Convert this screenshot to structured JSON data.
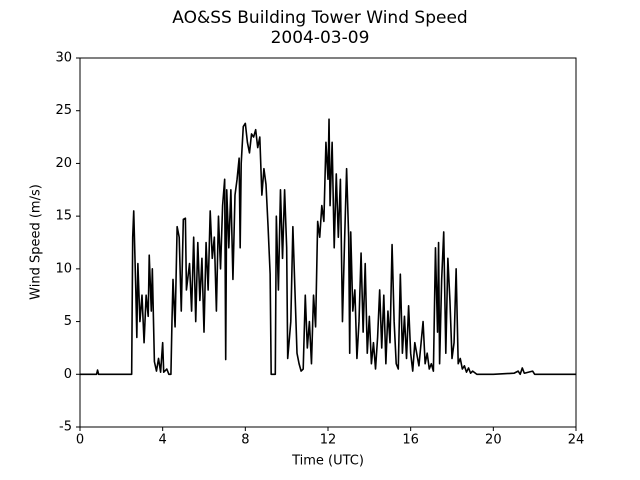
{
  "chart_data": {
    "type": "line",
    "title": "AO&SS Building Tower Wind Speed",
    "subtitle": "2004-03-09",
    "x_label": "Time (UTC)",
    "y_label": "Wind Speed (m/s)",
    "xlim": [
      0,
      24
    ],
    "xticks": [
      0,
      4,
      8,
      12,
      16,
      20,
      24
    ],
    "ylim": [
      -5,
      30
    ],
    "yticks": [
      -5,
      0,
      5,
      10,
      15,
      20,
      25,
      30
    ],
    "grid": false,
    "x": [
      0.0,
      0.8,
      0.85,
      0.9,
      2.5,
      2.55,
      2.6,
      2.7,
      2.75,
      2.8,
      2.9,
      3.0,
      3.1,
      3.2,
      3.3,
      3.35,
      3.45,
      3.5,
      3.6,
      3.7,
      3.8,
      3.9,
      4.0,
      4.05,
      4.2,
      4.3,
      4.4,
      4.45,
      4.5,
      4.6,
      4.7,
      4.8,
      4.9,
      5.0,
      5.1,
      5.15,
      5.3,
      5.4,
      5.5,
      5.6,
      5.7,
      5.8,
      5.9,
      6.0,
      6.1,
      6.2,
      6.3,
      6.4,
      6.5,
      6.6,
      6.7,
      6.8,
      6.9,
      7.0,
      7.05,
      7.1,
      7.2,
      7.3,
      7.4,
      7.5,
      7.6,
      7.7,
      7.75,
      7.8,
      7.9,
      8.0,
      8.1,
      8.2,
      8.3,
      8.4,
      8.5,
      8.6,
      8.7,
      8.8,
      8.9,
      9.0,
      9.1,
      9.2,
      9.25,
      9.45,
      9.5,
      9.6,
      9.7,
      9.8,
      9.9,
      10.0,
      10.05,
      10.2,
      10.3,
      10.4,
      10.5,
      10.6,
      10.7,
      10.8,
      10.9,
      11.0,
      11.1,
      11.2,
      11.3,
      11.4,
      11.5,
      11.6,
      11.7,
      11.8,
      11.9,
      12.0,
      12.05,
      12.1,
      12.2,
      12.3,
      12.4,
      12.5,
      12.6,
      12.7,
      12.8,
      12.9,
      13.0,
      13.05,
      13.1,
      13.2,
      13.3,
      13.4,
      13.5,
      13.6,
      13.7,
      13.8,
      13.9,
      14.0,
      14.1,
      14.2,
      14.3,
      14.4,
      14.5,
      14.6,
      14.7,
      14.8,
      14.9,
      15.0,
      15.1,
      15.2,
      15.3,
      15.4,
      15.5,
      15.6,
      15.7,
      15.8,
      15.9,
      16.0,
      16.1,
      16.2,
      16.4,
      16.6,
      16.7,
      16.8,
      16.9,
      17.0,
      17.1,
      17.2,
      17.3,
      17.35,
      17.4,
      17.5,
      17.6,
      17.7,
      17.8,
      17.9,
      18.0,
      18.1,
      18.2,
      18.3,
      18.4,
      18.5,
      18.6,
      18.7,
      18.8,
      18.9,
      19.0,
      19.2,
      20.0,
      21.0,
      21.2,
      21.3,
      21.4,
      21.5,
      21.9,
      22.0,
      24.0
    ],
    "series": [
      {
        "color": "#000000",
        "values": [
          0,
          0,
          0.4,
          0,
          0,
          13,
          15.5,
          8,
          3.5,
          10.5,
          5,
          7.5,
          3,
          7.5,
          5.5,
          11.3,
          6,
          10,
          1.2,
          0.3,
          1.5,
          0.2,
          3,
          0.2,
          0.5,
          0,
          0,
          5,
          9,
          4.5,
          14,
          13,
          6,
          14.7,
          14.8,
          8,
          10.5,
          6,
          13,
          5,
          12.5,
          7,
          11,
          4,
          12.5,
          8,
          15.5,
          11,
          13,
          6,
          15,
          10,
          16,
          18.5,
          1.4,
          17.5,
          12,
          17.5,
          9,
          17,
          18.5,
          20.5,
          12,
          20,
          23.5,
          23.8,
          22,
          21,
          22.8,
          22.5,
          23.2,
          21.5,
          22.5,
          17,
          19.5,
          18,
          14,
          9.5,
          0,
          0,
          15,
          8,
          17.5,
          11,
          17.5,
          12,
          1.5,
          5,
          14,
          8,
          2,
          1,
          0.3,
          0.5,
          7.5,
          2.5,
          5,
          1,
          7.5,
          4.5,
          14.5,
          13,
          16,
          14.5,
          22,
          18.5,
          24.2,
          16,
          22,
          12,
          19,
          13,
          18.5,
          5,
          12.5,
          19.5,
          13,
          2,
          13.5,
          6,
          8,
          1.5,
          5,
          11.5,
          4,
          10.5,
          2,
          5.5,
          1,
          3,
          0.5,
          3.5,
          8,
          2.5,
          7.5,
          1,
          6,
          3,
          12.3,
          5,
          1,
          0.5,
          9.5,
          2,
          5.5,
          1.5,
          6.5,
          2,
          0.3,
          3,
          0.8,
          5,
          1,
          2,
          0.5,
          1,
          0.3,
          12,
          4,
          12.5,
          1,
          9,
          13.5,
          2,
          11,
          7,
          1.5,
          3,
          10,
          1,
          1.5,
          0.5,
          0.8,
          0.2,
          0.6,
          0.1,
          0.3,
          0,
          0,
          0.1,
          0.3,
          0,
          0.6,
          0.1,
          0.3,
          0,
          0
        ]
      }
    ]
  }
}
